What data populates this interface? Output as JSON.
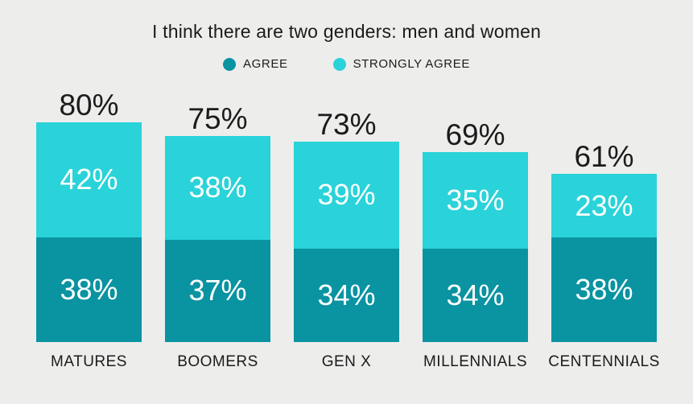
{
  "colors": {
    "background": "#ededec",
    "text": "#1b1b1b",
    "segment_label_text": "#ffffff",
    "agree": "#0a93a1",
    "strongly_agree": "#29d3d9"
  },
  "chart_data": {
    "type": "bar",
    "subtype": "stacked-vertical",
    "title": "I think there are two genders: men and women",
    "categories": [
      "MATURES",
      "BOOMERS",
      "GEN X",
      "MILLENNIALS",
      "CENTENNIALS"
    ],
    "series": [
      {
        "name": "AGREE",
        "color": "#0a93a1",
        "values": [
          38,
          37,
          34,
          34,
          38
        ]
      },
      {
        "name": "STRONGLY AGREE",
        "color": "#29d3d9",
        "values": [
          42,
          38,
          39,
          35,
          23
        ]
      }
    ],
    "totals": [
      80,
      75,
      73,
      69,
      61
    ],
    "unit": "%",
    "ylim": [
      0,
      80
    ],
    "grid": false,
    "axes_visible": false,
    "legend_position": "top-center",
    "value_labels": "inside-segments-and-total-above-bar"
  }
}
